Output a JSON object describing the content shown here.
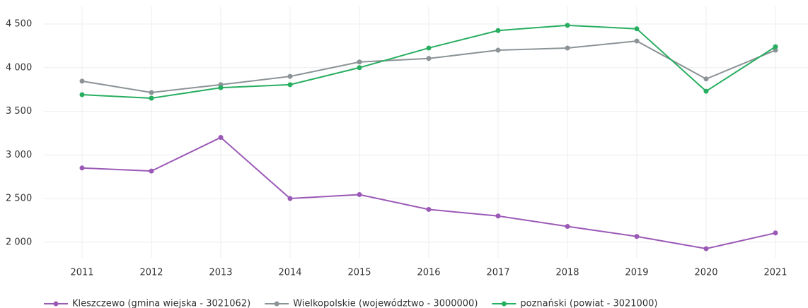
{
  "chart_data": {
    "type": "line",
    "categories": [
      "2011",
      "2012",
      "2013",
      "2014",
      "2015",
      "2016",
      "2017",
      "2018",
      "2019",
      "2020",
      "2021"
    ],
    "series": [
      {
        "name": "Kleszczewo (gmina wiejska - 3021062)",
        "color": "#9b59b6",
        "values": [
          2850,
          2815,
          3200,
          2500,
          2545,
          2375,
          2300,
          2180,
          2065,
          1925,
          2105
        ]
      },
      {
        "name": "Wielkopolskie (województwo - 3000000)",
        "color": "#8c9396",
        "values": [
          3845,
          3715,
          3805,
          3900,
          4065,
          4105,
          4200,
          4225,
          4305,
          3870,
          4200
        ]
      },
      {
        "name": "poznański (powiat - 3021000)",
        "color": "#27ae60",
        "values": [
          3690,
          3650,
          3770,
          3805,
          4000,
          4225,
          4425,
          4485,
          4445,
          3730,
          4240
        ]
      }
    ],
    "ylim": [
      1820,
      4700
    ],
    "yticks": [
      {
        "value": 2000,
        "label": "2 000"
      },
      {
        "value": 2500,
        "label": "2 500"
      },
      {
        "value": 3000,
        "label": "3 000"
      },
      {
        "value": 3500,
        "label": "3 500"
      },
      {
        "value": 4000,
        "label": "4 000"
      },
      {
        "value": 4500,
        "label": "4 500"
      }
    ],
    "grid": true,
    "legend": "bottom"
  }
}
